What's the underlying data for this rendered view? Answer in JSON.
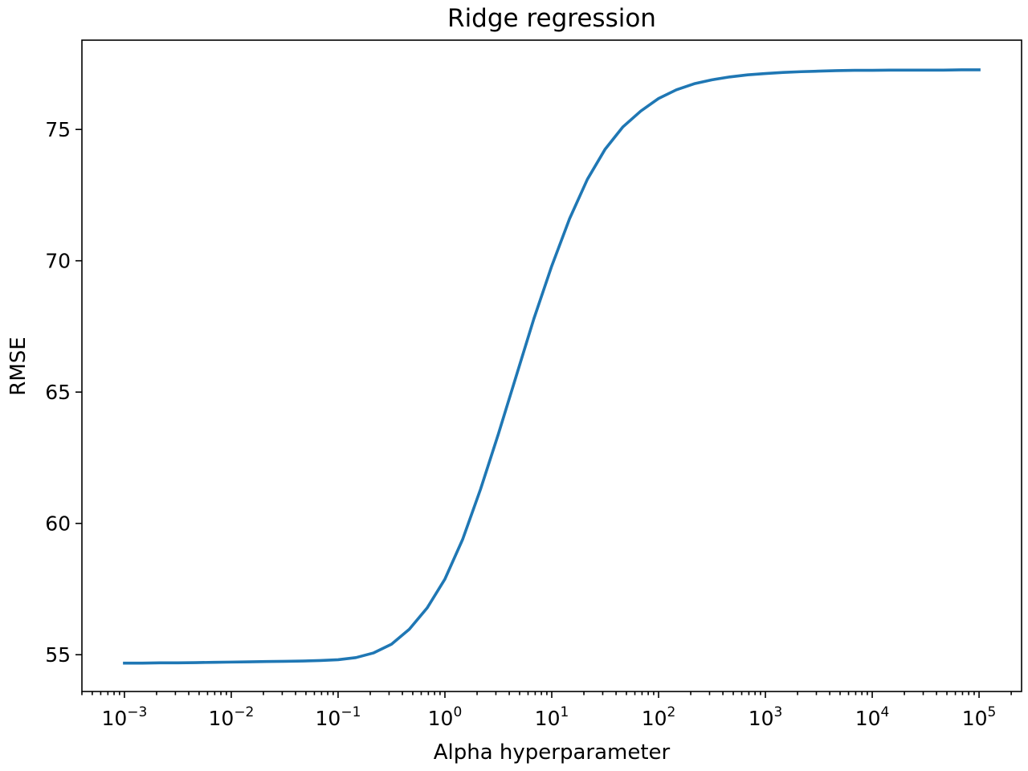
{
  "chart_data": {
    "type": "line",
    "title": "Ridge regression",
    "xlabel": "Alpha hyperparameter",
    "ylabel": "RMSE",
    "xscale": "log",
    "xlim": [
      0.0004,
      250000
    ],
    "ylim": [
      53.6,
      78.4
    ],
    "grid": false,
    "legend": "none",
    "x_major_ticks": [
      {
        "value": 0.001,
        "base": "10",
        "exp": "−3"
      },
      {
        "value": 0.01,
        "base": "10",
        "exp": "−2"
      },
      {
        "value": 0.1,
        "base": "10",
        "exp": "−1"
      },
      {
        "value": 1,
        "base": "10",
        "exp": "0"
      },
      {
        "value": 10,
        "base": "10",
        "exp": "1"
      },
      {
        "value": 100,
        "base": "10",
        "exp": "2"
      },
      {
        "value": 1000,
        "base": "10",
        "exp": "3"
      },
      {
        "value": 10000,
        "base": "10",
        "exp": "4"
      },
      {
        "value": 100000,
        "base": "10",
        "exp": "5"
      }
    ],
    "y_ticks": [
      {
        "value": 55,
        "label": "55"
      },
      {
        "value": 60,
        "label": "60"
      },
      {
        "value": 65,
        "label": "65"
      },
      {
        "value": 70,
        "label": "70"
      },
      {
        "value": 75,
        "label": "75"
      }
    ],
    "series": [
      {
        "color": "#1f77b4",
        "x": [
          0.001,
          0.0014678,
          0.0021544,
          0.0031623,
          0.0046416,
          0.0068129,
          0.01,
          0.014678,
          0.021544,
          0.031623,
          0.046416,
          0.068129,
          0.1,
          0.14678,
          0.21544,
          0.31623,
          0.46416,
          0.68129,
          1,
          1.4678,
          2.1544,
          3.1623,
          4.6416,
          6.8129,
          10,
          14.678,
          21.544,
          31.623,
          46.416,
          68.129,
          100,
          146.78,
          215.44,
          316.23,
          464.16,
          681.29,
          1000,
          1467.8,
          2154.4,
          3162.3,
          4641.6,
          6812.9,
          10000,
          14678,
          21544,
          31623,
          46416,
          68129,
          100000
        ],
        "y": [
          54.68,
          54.68,
          54.69,
          54.69,
          54.7,
          54.71,
          54.72,
          54.73,
          54.74,
          54.75,
          54.76,
          54.78,
          54.81,
          54.89,
          55.07,
          55.4,
          55.97,
          56.78,
          57.88,
          59.4,
          61.3,
          63.4,
          65.6,
          67.8,
          69.8,
          71.6,
          73.1,
          74.25,
          75.1,
          75.7,
          76.18,
          76.51,
          76.74,
          76.89,
          77.0,
          77.08,
          77.13,
          77.17,
          77.2,
          77.22,
          77.24,
          77.25,
          77.25,
          77.26,
          77.26,
          77.26,
          77.26,
          77.27,
          77.27
        ]
      }
    ]
  }
}
